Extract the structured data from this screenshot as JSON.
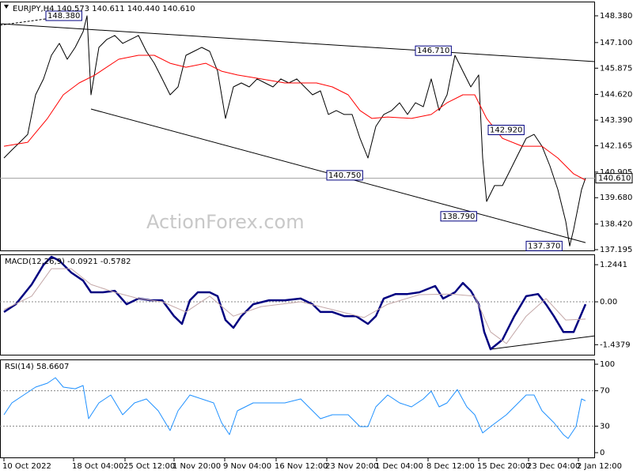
{
  "chart_data": [
    {
      "type": "line",
      "title": "EURJPY,H4 140.573 140.611 140.440 140.610",
      "watermark": "ActionForex.com",
      "xlim": [
        -5,
        747
      ],
      "ylim": [
        137.12,
        149.06
      ],
      "yticks": [
        {
          "value": 148.38,
          "label": "148.380"
        },
        {
          "value": 147.1,
          "label": "147.100"
        },
        {
          "value": 145.875,
          "label": "145.875"
        },
        {
          "value": 144.62,
          "label": "144.620"
        },
        {
          "value": 143.39,
          "label": "143.390"
        },
        {
          "value": 142.165,
          "label": "142.165"
        },
        {
          "value": 140.905,
          "label": "140.905"
        },
        {
          "value": 139.68,
          "label": "139.680"
        },
        {
          "value": 138.42,
          "label": "138.420"
        },
        {
          "value": 137.195,
          "label": "137.195"
        }
      ],
      "x": [
        0,
        10,
        20,
        30,
        40,
        50,
        60,
        70,
        80,
        90,
        100,
        105,
        110,
        120,
        130,
        140,
        150,
        160,
        170,
        180,
        190,
        200,
        210,
        220,
        230,
        240,
        250,
        260,
        270,
        280,
        290,
        300,
        310,
        320,
        330,
        340,
        350,
        360,
        370,
        380,
        390,
        400,
        410,
        420,
        430,
        440,
        450,
        460,
        470,
        480,
        490,
        500,
        510,
        520,
        530,
        540,
        550,
        560,
        570,
        580,
        590,
        600,
        605,
        610,
        620,
        630,
        640,
        650,
        660,
        670,
        680,
        690,
        700,
        710,
        715,
        720,
        730,
        735
      ],
      "series": [
        {
          "color": "#000000",
          "values": [
            141.58,
            141.96,
            142.33,
            142.71,
            144.6,
            145.36,
            146.49,
            147.06,
            146.3,
            146.87,
            147.62,
            148.38,
            144.6,
            146.87,
            147.25,
            147.44,
            147.06,
            147.25,
            147.44,
            146.68,
            146.11,
            145.36,
            144.6,
            144.98,
            146.49,
            146.68,
            146.87,
            146.68,
            145.73,
            143.47,
            144.98,
            145.17,
            144.98,
            145.36,
            145.17,
            144.98,
            145.36,
            145.17,
            145.36,
            144.98,
            144.6,
            144.79,
            143.66,
            143.85,
            143.66,
            143.66,
            142.52,
            141.58,
            143.09,
            143.66,
            143.85,
            144.22,
            143.66,
            144.22,
            144.03,
            145.36,
            143.85,
            144.6,
            146.49,
            145.73,
            144.98,
            145.55,
            141.58,
            139.5,
            140.26,
            140.26,
            141.01,
            141.77,
            142.52,
            142.71,
            142.14,
            141.2,
            140.07,
            138.55,
            137.37,
            138.17,
            140.07,
            140.61
          ]
        },
        {
          "color": "#ff0000",
          "x": [
            0,
            30,
            55,
            75,
            95,
            115,
            145,
            170,
            190,
            210,
            230,
            255,
            275,
            295,
            325,
            355,
            375,
            395,
            415,
            435,
            450,
            465,
            485,
            515,
            540,
            560,
            580,
            595,
            610,
            630,
            655,
            680,
            700,
            720,
            735
          ],
          "values": [
            142.14,
            142.33,
            143.47,
            144.6,
            145.17,
            145.55,
            146.3,
            146.49,
            146.49,
            146.11,
            145.92,
            146.11,
            145.73,
            145.55,
            145.36,
            145.17,
            145.17,
            145.17,
            144.98,
            144.6,
            143.85,
            143.47,
            143.54,
            143.47,
            143.66,
            144.22,
            144.6,
            144.6,
            143.47,
            142.52,
            142.14,
            142.14,
            141.58,
            140.82,
            140.52
          ]
        }
      ],
      "last_price": {
        "value": 140.61,
        "label": "140.610"
      },
      "annotations": [
        {
          "x": 53,
          "value": 148.38,
          "label": "148.380"
        },
        {
          "x": 520,
          "value": 146.71,
          "label": "146.710"
        },
        {
          "x": 408,
          "value": 140.75,
          "label": "140.750"
        },
        {
          "x": 612,
          "value": 142.92,
          "label": "142.920"
        },
        {
          "x": 552,
          "value": 138.79,
          "label": "138.790"
        },
        {
          "x": 660,
          "value": 137.37,
          "label": "137.370"
        }
      ],
      "trendlines": [
        {
          "x": [
            -5,
            747
          ],
          "values": [
            148.0,
            146.19
          ]
        },
        {
          "x": [
            110,
            735
          ],
          "values": [
            143.92,
            137.53
          ]
        },
        {
          "x": [
            -5,
            95
          ],
          "values": [
            147.93,
            148.45
          ],
          "dashed": true
        }
      ]
    },
    {
      "type": "line",
      "title": "MACD(12,26,9) -0.0921 -0.5782",
      "xlim": [
        -5,
        747
      ],
      "ylim": [
        -1.8,
        1.59
      ],
      "yticks": [
        1.2441,
        {
          "value": 0,
          "label": "0.00"
        },
        -1.4379
      ],
      "levels": [
        0
      ],
      "x": [
        0,
        15,
        35,
        50,
        60,
        70,
        85,
        100,
        110,
        125,
        140,
        155,
        170,
        185,
        200,
        215,
        225,
        235,
        245,
        260,
        270,
        280,
        290,
        300,
        315,
        335,
        355,
        375,
        390,
        400,
        415,
        430,
        445,
        460,
        470,
        480,
        495,
        510,
        525,
        545,
        555,
        570,
        580,
        590,
        600,
        607,
        615,
        630,
        645,
        660,
        675,
        685,
        695,
        707,
        720,
        735
      ],
      "series": [
        {
          "color": "#000080",
          "bold": true,
          "values": [
            -0.34,
            -0.08,
            0.58,
            1.24,
            1.51,
            1.38,
            0.98,
            0.71,
            0.32,
            0.32,
            0.37,
            -0.08,
            0.11,
            0.05,
            0.05,
            -0.48,
            -0.74,
            0.05,
            0.32,
            0.32,
            0.19,
            -0.61,
            -0.87,
            -0.48,
            -0.08,
            0.05,
            0.05,
            0.11,
            -0.08,
            -0.34,
            -0.34,
            -0.48,
            -0.48,
            -0.74,
            -0.48,
            0.11,
            0.26,
            0.26,
            0.32,
            0.53,
            0.11,
            0.32,
            0.63,
            0.37,
            -0.08,
            -1.01,
            -1.59,
            -1.27,
            -0.48,
            0.19,
            0.26,
            -0.08,
            -0.48,
            -1.01,
            -1.01,
            -0.08
          ]
        },
        {
          "color": "#c4a8a8",
          "x": [
            0,
            35,
            60,
            85,
            110,
            140,
            170,
            200,
            230,
            260,
            290,
            325,
            375,
            415,
            455,
            485,
            525,
            565,
            595,
            615,
            635,
            660,
            685,
            710,
            735
          ],
          "values": [
            -0.26,
            0.19,
            1.11,
            1.11,
            0.58,
            0.32,
            0.11,
            0,
            -0.34,
            0.19,
            -0.48,
            -0.16,
            0,
            -0.26,
            -0.53,
            -0.08,
            0.24,
            0.26,
            0.19,
            -1.01,
            -1.4,
            -0.48,
            0.11,
            -0.61,
            -0.58
          ]
        }
      ],
      "trendlines": [
        {
          "x": [
            615,
            747
          ],
          "values": [
            -1.59,
            -1.14
          ]
        }
      ]
    },
    {
      "type": "line",
      "title": "RSI(14) 58.6607",
      "xlim": [
        -5,
        747
      ],
      "ylim": [
        -6.25,
        105.4
      ],
      "yticks": [
        100,
        70,
        30,
        0
      ],
      "levels": [
        70,
        30
      ],
      "xticks": [
        {
          "value": 0,
          "label": "10 Oct 2022"
        },
        {
          "value": 88,
          "label": "18 Oct 04:00"
        },
        {
          "value": 153,
          "label": "25 Oct 12:00"
        },
        {
          "value": 215,
          "label": "1 Nov 20:00"
        },
        {
          "value": 279,
          "label": "9 Nov 04:00"
        },
        {
          "value": 344,
          "label": "16 Nov 12:00"
        },
        {
          "value": 408,
          "label": "23 Nov 20:00"
        },
        {
          "value": 471,
          "label": "1 Dec 04:00"
        },
        {
          "value": 536,
          "label": "8 Dec 12:00"
        },
        {
          "value": 600,
          "label": "15 Dec 20:00"
        },
        {
          "value": 663,
          "label": "23 Dec 04:00"
        },
        {
          "value": 726,
          "label": "2 Jan 12:00"
        }
      ],
      "x": [
        0,
        10,
        25,
        40,
        55,
        65,
        75,
        90,
        100,
        107,
        120,
        135,
        150,
        165,
        180,
        195,
        210,
        220,
        235,
        250,
        265,
        275,
        285,
        295,
        315,
        335,
        355,
        375,
        390,
        400,
        415,
        435,
        450,
        460,
        470,
        485,
        500,
        515,
        530,
        540,
        550,
        560,
        573,
        585,
        595,
        605,
        615,
        635,
        650,
        660,
        670,
        680,
        695,
        707,
        713,
        723,
        730,
        735
      ],
      "series": [
        {
          "color": "#1e90ff",
          "values": [
            42.9,
            56.3,
            65.2,
            74.1,
            78.6,
            84.8,
            74.1,
            72.3,
            75.9,
            38.4,
            56.3,
            65.2,
            42.9,
            56.3,
            60.7,
            47.3,
            25.0,
            47.3,
            65.2,
            60.7,
            56.3,
            33.9,
            20.5,
            47.3,
            56.3,
            56.3,
            56.3,
            60.7,
            47.3,
            38.4,
            42.9,
            42.9,
            29.5,
            29.5,
            51.8,
            65.2,
            56.3,
            51.8,
            60.7,
            69.6,
            51.8,
            56.3,
            71.4,
            51.8,
            42.9,
            22.3,
            29.5,
            42.9,
            56.3,
            65.2,
            65.2,
            47.3,
            33.9,
            20.5,
            16.1,
            29.5,
            60.7,
            58.66
          ]
        }
      ]
    }
  ]
}
